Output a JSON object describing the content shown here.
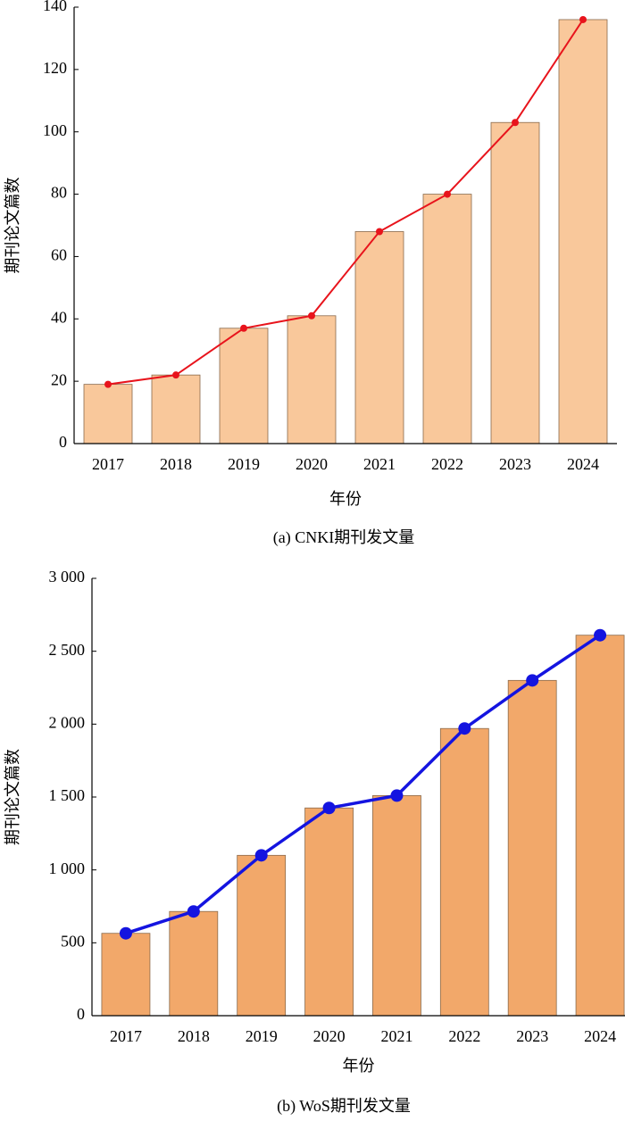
{
  "chart_data": [
    {
      "type": "bar_line",
      "caption": "(a)  CNKI期刊发文量",
      "xlabel": "年份",
      "ylabel": "期刊论文篇数",
      "categories": [
        "2017",
        "2018",
        "2019",
        "2020",
        "2021",
        "2022",
        "2023",
        "2024"
      ],
      "values": [
        19,
        22,
        37,
        41,
        68,
        80,
        103,
        136
      ],
      "bar_color": "#f9c89b",
      "line_color": "#e8141c",
      "ylim": [
        0,
        140
      ],
      "yticks": [
        0,
        20,
        40,
        60,
        80,
        100,
        120,
        140
      ]
    },
    {
      "type": "bar_line",
      "caption": "(b)  WoS期刊发文量",
      "xlabel": "年份",
      "ylabel": "期刊论文篇数",
      "categories": [
        "2017",
        "2018",
        "2019",
        "2020",
        "2021",
        "2022",
        "2023",
        "2024"
      ],
      "values": [
        565,
        715,
        1100,
        1425,
        1510,
        1970,
        2300,
        2610
      ],
      "bar_color": "#f2a86a",
      "line_color": "#1414e0",
      "ylim": [
        0,
        3000
      ],
      "yticks": [
        0,
        500,
        {
          "value": 1000,
          "label": "1 000"
        },
        {
          "value": 1500,
          "label": "1 500"
        },
        {
          "value": 2000,
          "label": "2 000"
        },
        {
          "value": 2500,
          "label": "2 500"
        },
        {
          "value": 3000,
          "label": "3 000"
        }
      ]
    }
  ]
}
